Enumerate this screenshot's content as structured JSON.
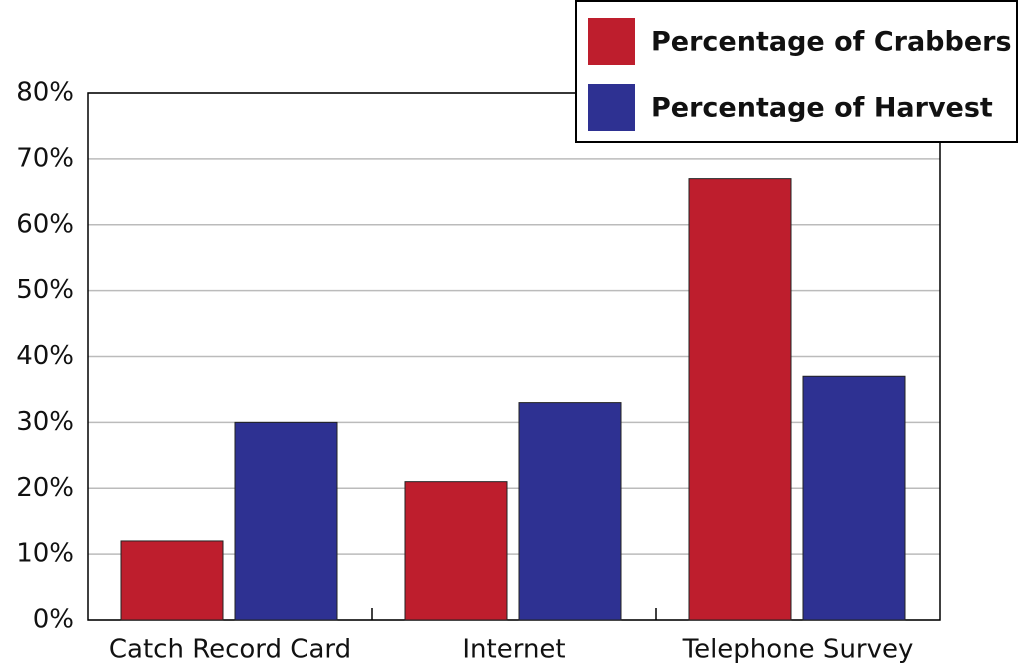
{
  "chart_data": {
    "type": "bar",
    "categories": [
      "Catch Record Card",
      "Internet",
      "Telephone Survey"
    ],
    "series": [
      {
        "name": "Percentage of Crabbers",
        "color": "#be1e2d",
        "values": [
          12,
          21,
          67
        ]
      },
      {
        "name": "Percentage of Harvest",
        "color": "#2e3192",
        "values": [
          30,
          33,
          37
        ]
      }
    ],
    "ylim": [
      0,
      80
    ],
    "yticks": [
      {
        "value": 0,
        "label": "0%"
      },
      {
        "value": 10,
        "label": "10%"
      },
      {
        "value": 20,
        "label": "20%"
      },
      {
        "value": 30,
        "label": "30%"
      },
      {
        "value": 40,
        "label": "40%"
      },
      {
        "value": 50,
        "label": "50%"
      },
      {
        "value": 60,
        "label": "60%"
      },
      {
        "value": 70,
        "label": "70%"
      },
      {
        "value": 80,
        "label": "80%"
      }
    ],
    "grid": true,
    "legend": "top-right"
  }
}
